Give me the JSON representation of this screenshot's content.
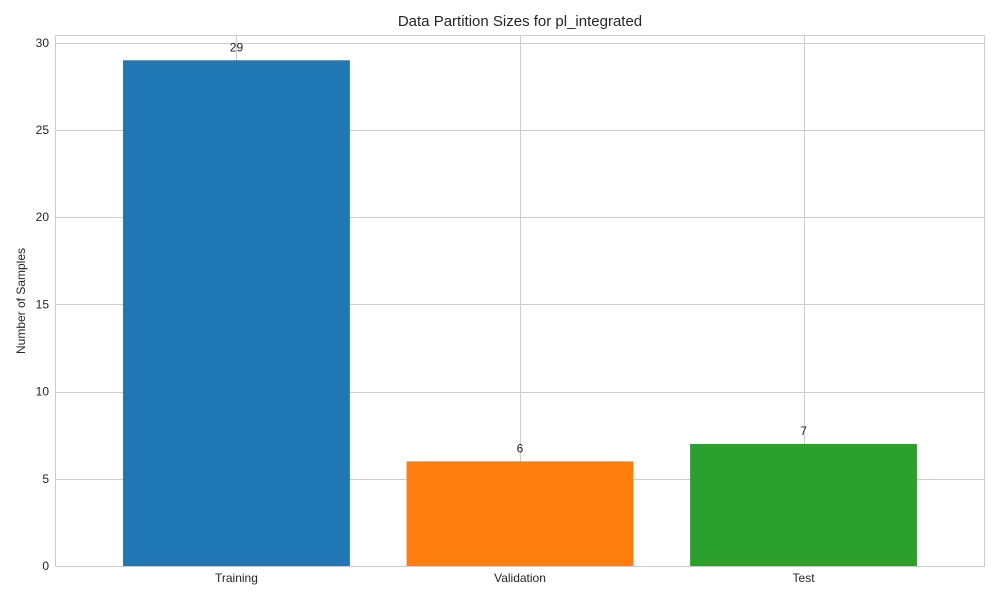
{
  "chart_data": {
    "type": "bar",
    "title": "Data Partition Sizes for pl_integrated",
    "xlabel": "",
    "ylabel": "Number of Samples",
    "categories": [
      "Training",
      "Validation",
      "Test"
    ],
    "values": [
      29,
      6,
      7
    ],
    "data_labels": [
      "29",
      "6",
      "7"
    ],
    "colors": [
      "#1f77b4",
      "#ff7f0e",
      "#2ca02c"
    ],
    "ylim": [
      0,
      30.45
    ],
    "yticks": [
      0,
      5,
      10,
      15,
      20,
      25,
      30
    ],
    "ytick_labels": [
      "0",
      "5",
      "10",
      "15",
      "20",
      "25",
      "30"
    ],
    "grid": true,
    "legend": "none"
  }
}
